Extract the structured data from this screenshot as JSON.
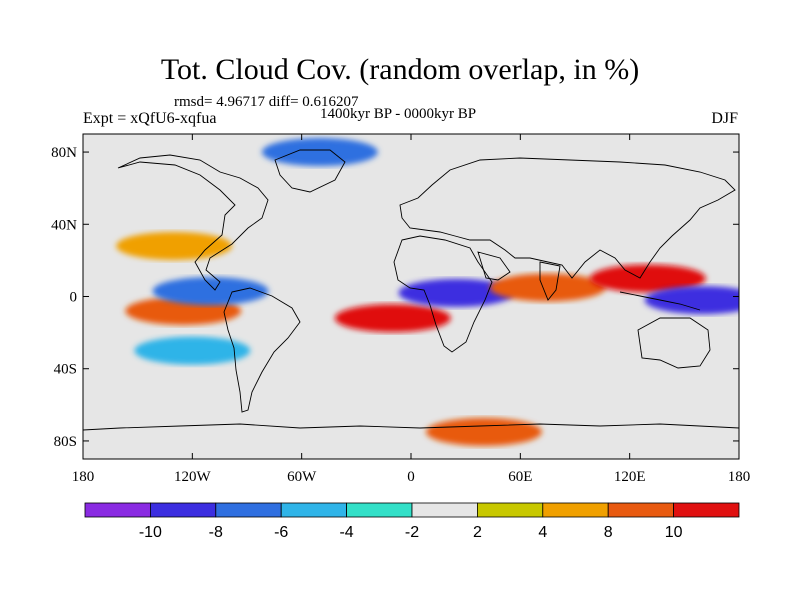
{
  "title": "Tot. Cloud Cov. (random overlap, in %)",
  "stats_text": "rmsd= 4.96717 diff= 0.616207",
  "period_text": "1400kyr BP - 0000kyr BP",
  "experiment_text": "Expt = xQfU6-xqfua",
  "season_text": "DJF",
  "chart_data": {
    "type": "heatmap",
    "title": "Tot. Cloud Cov. (random overlap, in %)",
    "variable": "Total cloud cover difference (%)",
    "projection": "cylindrical equidistant",
    "xlim": [
      -180,
      180
    ],
    "ylim": [
      -90,
      90
    ],
    "x_ticks": [
      {
        "value": -180,
        "label": "180"
      },
      {
        "value": -120,
        "label": "120W"
      },
      {
        "value": -60,
        "label": "60W"
      },
      {
        "value": 0,
        "label": "0"
      },
      {
        "value": 60,
        "label": "60E"
      },
      {
        "value": 120,
        "label": "120E"
      },
      {
        "value": 180,
        "label": "180"
      }
    ],
    "y_ticks": [
      {
        "value": 80,
        "label": "80N"
      },
      {
        "value": 40,
        "label": "40N"
      },
      {
        "value": 0,
        "label": "0"
      },
      {
        "value": -40,
        "label": "40S"
      },
      {
        "value": -80,
        "label": "80S"
      }
    ],
    "colorbar": {
      "levels": [
        -10,
        -8,
        -6,
        -4,
        -2,
        2,
        4,
        8,
        10
      ],
      "labels": [
        "-10",
        "-8",
        "-6",
        "-4",
        "-2",
        "2",
        "4",
        "8",
        "10"
      ],
      "colors": [
        "#8a2be2",
        "#3c2ee0",
        "#2f6fe0",
        "#2fb4e8",
        "#33e0c8",
        "#e6e6e6",
        "#c8c800",
        "#f0a000",
        "#e85a10",
        "#e01010"
      ]
    },
    "features": [
      {
        "name": "equatorial-pacific-warm",
        "lon": -125,
        "lat": -8,
        "value": 9
      },
      {
        "name": "equatorial-pacific-cool",
        "lon": -110,
        "lat": 3,
        "value": -8
      },
      {
        "name": "north-pacific-band",
        "lon": -130,
        "lat": 28,
        "value": 6
      },
      {
        "name": "south-pacific-band",
        "lon": -120,
        "lat": -30,
        "value": -5
      },
      {
        "name": "south-atlantic-warm",
        "lon": -10,
        "lat": -12,
        "value": 10
      },
      {
        "name": "central-africa-cool",
        "lon": 25,
        "lat": 2,
        "value": -10
      },
      {
        "name": "indian-ocean-warm",
        "lon": 75,
        "lat": 5,
        "value": 8
      },
      {
        "name": "west-pacific-warm",
        "lon": 130,
        "lat": 10,
        "value": 10
      },
      {
        "name": "west-pacific-cool",
        "lon": 160,
        "lat": -2,
        "value": -10
      },
      {
        "name": "arctic-cool",
        "lon": -50,
        "lat": 80,
        "value": -8
      },
      {
        "name": "southern-ocean-band",
        "lon": 40,
        "lat": -75,
        "value": 9
      }
    ]
  }
}
